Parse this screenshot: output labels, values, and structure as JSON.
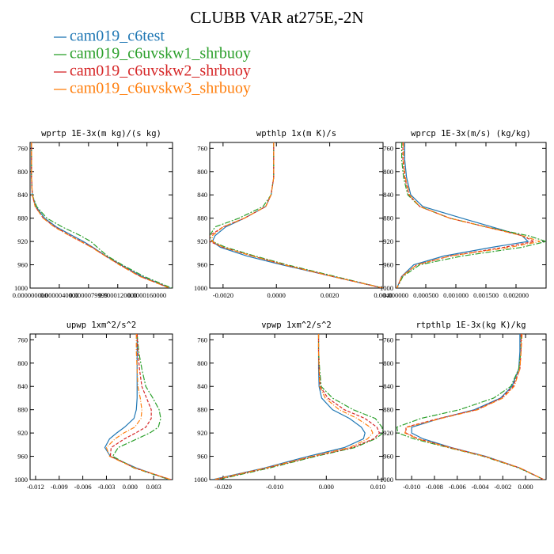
{
  "title": "CLUBB VAR at275E,-2N",
  "legend": [
    {
      "name": "cam019_c6test",
      "color": "#1f77b4"
    },
    {
      "name": "cam019_c6uvskw1_shrbuoy",
      "color": "#2ca02c"
    },
    {
      "name": "cam019_c6uvskw2_shrbuoy",
      "color": "#d62728"
    },
    {
      "name": "cam019_c6uvskw3_shrbuoy",
      "color": "#ff7f0e"
    }
  ],
  "chart_data": [
    {
      "type": "line",
      "title": "wprtp  1E-3x(m kg)/(s kg)",
      "y": [
        750,
        780,
        810,
        840,
        860,
        880,
        895,
        910,
        920,
        930,
        945,
        960,
        980,
        1000
      ],
      "xlim": [
        0,
        1.95e-05
      ],
      "ylim": [
        1000,
        750
      ],
      "xticks": [
        {
          "value": 0,
          "label": "0.000000000"
        },
        {
          "value": 4e-06,
          "label": "0.0000040000"
        },
        {
          "value": 7.9999e-06,
          "label": "0.0000079999"
        },
        {
          "value": 1.2e-05,
          "label": "0.0000120000"
        },
        {
          "value": 1.6e-05,
          "label": "0.0000160000"
        }
      ],
      "yticks": [
        760,
        800,
        840,
        880,
        920,
        960,
        1000
      ],
      "series": [
        {
          "values": [
            2e-07,
            2e-07,
            2e-07,
            3e-07,
            8e-07,
            2e-06,
            3.6e-06,
            5.8e-06,
            7.3e-06,
            8.6e-06,
            1.04e-05,
            1.24e-05,
            1.53e-05,
            1.92e-05
          ]
        },
        {
          "values": [
            2e-07,
            2e-07,
            2e-07,
            3e-07,
            9e-07,
            2.3e-06,
            4.4e-06,
            6.9e-06,
            8.3e-06,
            9.2e-06,
            1.06e-05,
            1.26e-05,
            1.56e-05,
            1.94e-05
          ]
        },
        {
          "values": [
            2e-07,
            2e-07,
            2e-07,
            3e-07,
            7e-07,
            1.8e-06,
            3.4e-06,
            5.5e-06,
            7e-06,
            8.5e-06,
            1.03e-05,
            1.23e-05,
            1.51e-05,
            1.91e-05
          ]
        },
        {
          "values": [
            2e-07,
            2e-07,
            2e-07,
            3e-07,
            7e-07,
            1.8e-06,
            3.3e-06,
            5.4e-06,
            6.9e-06,
            8.4e-06,
            1.03e-05,
            1.22e-05,
            1.5e-05,
            1.91e-05
          ]
        }
      ]
    },
    {
      "type": "line",
      "title": "wpthlp  1x(m K)/s",
      "y": [
        750,
        780,
        810,
        840,
        860,
        880,
        895,
        910,
        920,
        930,
        945,
        960,
        980,
        1000
      ],
      "xlim": [
        -0.0025,
        0.004
      ],
      "ylim": [
        1000,
        750
      ],
      "xticks": [
        {
          "value": -0.002,
          "label": "-0.0020"
        },
        {
          "value": 0,
          "label": "0.0000"
        },
        {
          "value": 0.002,
          "label": "0.0020"
        },
        {
          "value": 0.004,
          "label": "0.0040"
        }
      ],
      "yticks": [
        760,
        800,
        840,
        880,
        920,
        960,
        1000
      ],
      "series": [
        {
          "values": [
            -0.0001,
            -0.0001,
            -0.0001,
            -0.0002,
            -0.0004,
            -0.0012,
            -0.0019,
            -0.0023,
            -0.0024,
            -0.0021,
            -0.0011,
            0.0002,
            0.0021,
            0.004
          ]
        },
        {
          "values": [
            -0.0001,
            -0.0001,
            -0.0001,
            -0.0002,
            -0.0005,
            -0.0014,
            -0.0023,
            -0.0025,
            -0.0024,
            -0.0019,
            -0.0008,
            0.0004,
            0.0022,
            0.004
          ]
        },
        {
          "values": [
            -0.0001,
            -0.0001,
            -0.0001,
            -0.0002,
            -0.0004,
            -0.0012,
            -0.002,
            -0.0025,
            -0.0025,
            -0.002,
            -0.0009,
            0.0003,
            0.0021,
            0.004
          ]
        },
        {
          "values": [
            -0.0001,
            -0.0001,
            -0.0001,
            -0.0002,
            -0.0004,
            -0.0012,
            -0.002,
            -0.0024,
            -0.0024,
            -0.002,
            -0.0009,
            0.0003,
            0.0021,
            0.004
          ]
        }
      ]
    },
    {
      "type": "line",
      "title": "wprcp  1E-3x(m/s) (kg/kg)",
      "y": [
        750,
        780,
        810,
        840,
        860,
        880,
        895,
        910,
        920,
        930,
        945,
        960,
        980,
        1000
      ],
      "xlim": [
        0,
        0.0025
      ],
      "ylim": [
        1000,
        750
      ],
      "xticks": [
        {
          "value": 0,
          "label": "0.000000"
        },
        {
          "value": 0.0005,
          "label": "0.000500"
        },
        {
          "value": 0.001,
          "label": "0.001000"
        },
        {
          "value": 0.0015,
          "label": "0.001500"
        },
        {
          "value": 0.002,
          "label": "0.002000"
        }
      ],
      "yticks": [
        760,
        800,
        840,
        880,
        920,
        960,
        1000
      ],
      "series": [
        {
          "values": [
            0.00015,
            0.00015,
            0.00018,
            0.00025,
            0.00045,
            0.0011,
            0.0016,
            0.0021,
            0.0022,
            0.0016,
            0.0008,
            0.0003,
            0.0001,
            2e-05
          ]
        },
        {
          "values": [
            0.0001,
            0.0001,
            0.00013,
            0.0002,
            0.0004,
            0.0009,
            0.0015,
            0.0022,
            0.0025,
            0.0021,
            0.0011,
            0.0004,
            0.00012,
            2e-05
          ]
        },
        {
          "values": [
            0.00012,
            0.00012,
            0.00015,
            0.00022,
            0.0004,
            0.0009,
            0.0015,
            0.0021,
            0.0023,
            0.0018,
            0.0009,
            0.00035,
            0.0001,
            2e-05
          ]
        },
        {
          "values": [
            0.00013,
            0.00013,
            0.00016,
            0.00023,
            0.0004,
            0.0009,
            0.0015,
            0.0021,
            0.0024,
            0.0019,
            0.0009,
            0.00035,
            0.0001,
            2e-05
          ]
        }
      ]
    },
    {
      "type": "line",
      "title": "upwp  1xm^2/s^2",
      "y": [
        750,
        780,
        810,
        840,
        860,
        880,
        895,
        910,
        920,
        930,
        945,
        960,
        980,
        1000
      ],
      "xlim": [
        -0.0127,
        0.0054
      ],
      "ylim": [
        1000,
        750
      ],
      "xticks": [
        -0.012,
        -0.009,
        -0.006,
        -0.003,
        {
          "value": 0,
          "label": "0.000"
        },
        0.003
      ],
      "yticks": [
        760,
        800,
        840,
        880,
        920,
        960,
        1000
      ],
      "series": [
        {
          "values": [
            0.0009,
            0.0009,
            0.0009,
            0.0009,
            0.0009,
            0.0008,
            0.0005,
            -0.0007,
            -0.0017,
            -0.0026,
            -0.0032,
            -0.0025,
            0.0008,
            0.005
          ]
        },
        {
          "values": [
            0.0009,
            0.0011,
            0.0015,
            0.002,
            0.0029,
            0.0037,
            0.0039,
            0.0036,
            0.0025,
            0.0009,
            -0.0015,
            -0.0022,
            0.0005,
            0.005
          ]
        },
        {
          "values": [
            0.0009,
            0.001,
            0.0012,
            0.0015,
            0.0021,
            0.0027,
            0.0027,
            0.002,
            0.0007,
            -0.0007,
            -0.0024,
            -0.0025,
            0.0006,
            0.0052
          ]
        },
        {
          "values": [
            0.0008,
            0.0008,
            0.0009,
            0.001,
            0.0013,
            0.0015,
            0.0014,
            0.0006,
            -0.0008,
            -0.0019,
            -0.003,
            -0.0026,
            0.0006,
            0.0052
          ]
        }
      ]
    },
    {
      "type": "line",
      "title": "vpwp  1xm^2/s^2",
      "y": [
        750,
        780,
        810,
        840,
        860,
        880,
        895,
        910,
        920,
        930,
        945,
        960,
        980,
        1000
      ],
      "xlim": [
        -0.0226,
        0.011
      ],
      "ylim": [
        1000,
        750
      ],
      "xticks": [
        {
          "value": -0.02,
          "label": "-0.020"
        },
        {
          "value": -0.01,
          "label": "-0.010"
        },
        {
          "value": 0,
          "label": "0.000"
        },
        {
          "value": 0.01,
          "label": "0.010"
        }
      ],
      "yticks": [
        760,
        800,
        840,
        880,
        920,
        960,
        1000
      ],
      "series": [
        {
          "values": [
            -0.0015,
            -0.0015,
            -0.0015,
            -0.0014,
            -0.0009,
            0.0012,
            0.0045,
            0.0068,
            0.0075,
            0.0072,
            0.0035,
            -0.0035,
            -0.012,
            -0.022
          ]
        },
        {
          "values": [
            -0.0015,
            -0.0015,
            -0.0013,
            -0.001,
            0.0012,
            0.0052,
            0.0095,
            0.0108,
            0.011,
            0.0095,
            0.0055,
            -0.002,
            -0.011,
            -0.021
          ]
        },
        {
          "values": [
            -0.0015,
            -0.0015,
            -0.0014,
            -0.0012,
            0.0003,
            0.0035,
            0.0075,
            0.0098,
            0.0103,
            0.0092,
            0.005,
            -0.0025,
            -0.0115,
            -0.0215
          ]
        },
        {
          "values": [
            -0.0015,
            -0.0015,
            -0.0014,
            -0.0013,
            -0.0002,
            0.0025,
            0.006,
            0.0085,
            0.009,
            0.008,
            0.0045,
            -0.0028,
            -0.0117,
            -0.0218
          ]
        }
      ]
    },
    {
      "type": "line",
      "title": "rtpthlp  1E-3x(kg K)/kg",
      "y": [
        750,
        780,
        810,
        840,
        860,
        880,
        895,
        910,
        920,
        930,
        945,
        960,
        980,
        1000
      ],
      "xlim": [
        -0.0114,
        0.0018
      ],
      "ylim": [
        1000,
        750
      ],
      "xticks": [
        {
          "value": -0.01,
          "label": "-0.010"
        },
        -0.008,
        -0.006,
        -0.004,
        -0.002,
        {
          "value": 0,
          "label": "0.000"
        }
      ],
      "yticks": [
        760,
        800,
        840,
        880,
        920,
        960,
        1000
      ],
      "series": [
        {
          "values": [
            -0.0005,
            -0.0005,
            -0.0006,
            -0.0012,
            -0.0022,
            -0.0045,
            -0.0075,
            -0.01,
            -0.01,
            -0.009,
            -0.0065,
            -0.0035,
            -0.0005,
            0.0016
          ]
        },
        {
          "values": [
            -0.0004,
            -0.0004,
            -0.0006,
            -0.0013,
            -0.0028,
            -0.0058,
            -0.0092,
            -0.0113,
            -0.0112,
            -0.0098,
            -0.0068,
            -0.0037,
            -0.0006,
            0.0016
          ]
        },
        {
          "values": [
            -0.0004,
            -0.0004,
            -0.0005,
            -0.0011,
            -0.0021,
            -0.0043,
            -0.0076,
            -0.0105,
            -0.0105,
            -0.0094,
            -0.0066,
            -0.0036,
            -0.0005,
            0.0016
          ]
        },
        {
          "values": [
            -0.0003,
            -0.0004,
            -0.0005,
            -0.001,
            -0.002,
            -0.0042,
            -0.0074,
            -0.0104,
            -0.0106,
            -0.0095,
            -0.0067,
            -0.0036,
            -0.0005,
            0.0016
          ]
        }
      ]
    }
  ]
}
